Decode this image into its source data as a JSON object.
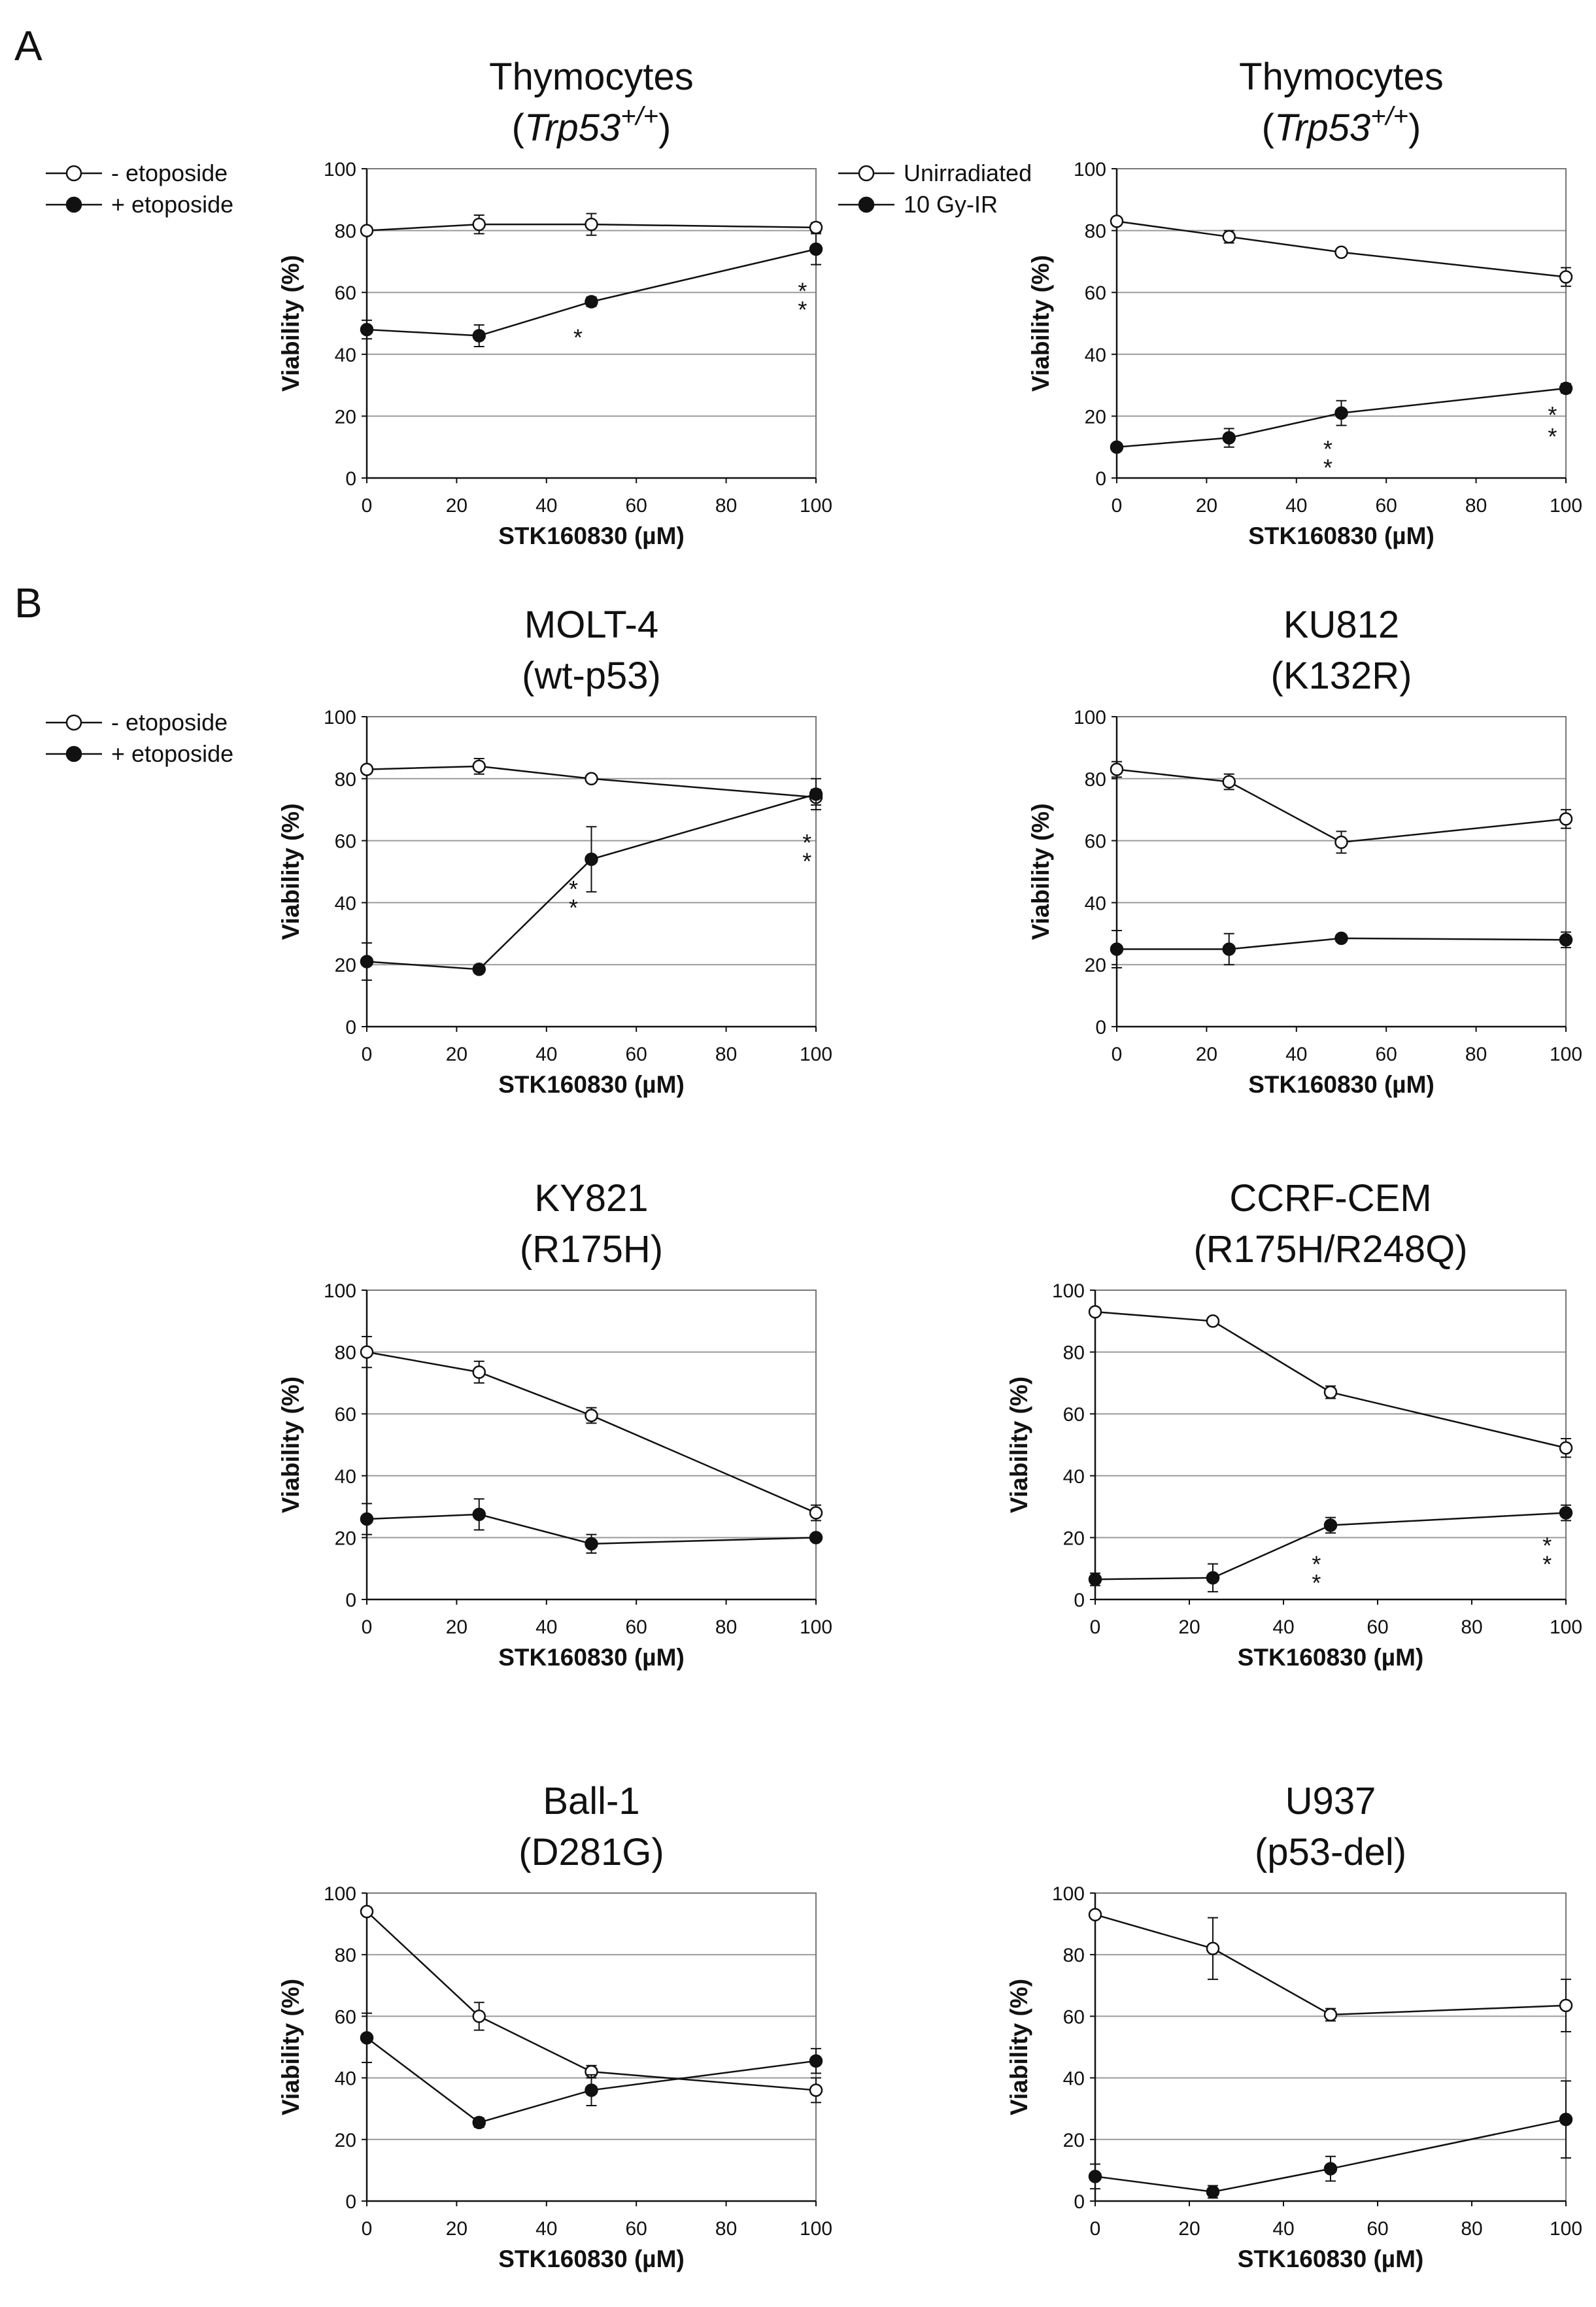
{
  "panel_labels": [
    "A",
    "B"
  ],
  "chart_data": [
    {
      "type": "line",
      "title": "Thymocytes",
      "subtitle_pre": "(",
      "subtitle_gene": "Trp53",
      "subtitle_sup": "+/+",
      "subtitle_post": ")",
      "xlabel": "STK160830 (µM)",
      "ylabel": "Viability (%)",
      "x": [
        0,
        25,
        50,
        100
      ],
      "xticks": [
        "0",
        "20",
        "40",
        "60",
        "80",
        "100"
      ],
      "yticks": [
        "0",
        "20",
        "40",
        "60",
        "80",
        "100"
      ],
      "xlim": [
        0,
        100
      ],
      "ylim": [
        0,
        100
      ],
      "legend": [
        "- etoposide",
        "+ etoposide"
      ],
      "series": [
        {
          "name": "- etoposide",
          "marker": "open",
          "values": [
            80,
            82,
            82,
            81
          ],
          "errors": [
            0.5,
            3,
            3.5,
            1.5
          ]
        },
        {
          "name": "+ etoposide",
          "marker": "filled",
          "values": [
            48,
            46,
            57,
            74
          ],
          "errors": [
            3,
            3.5,
            1.5,
            5
          ]
        }
      ],
      "annotations": [
        {
          "text": "*",
          "x": 47,
          "y": 47
        },
        {
          "text": "*",
          "x": 97,
          "y": 62
        },
        {
          "text": "*",
          "x": 97,
          "y": 56
        }
      ]
    },
    {
      "type": "line",
      "title": "Thymocytes",
      "subtitle_pre": "(",
      "subtitle_gene": "Trp53",
      "subtitle_sup": "+/+",
      "subtitle_post": ")",
      "xlabel": "STK160830 (µM)",
      "ylabel": "Viability (%)",
      "x": [
        0,
        25,
        50,
        100
      ],
      "xticks": [
        "0",
        "20",
        "40",
        "60",
        "80",
        "100"
      ],
      "yticks": [
        "0",
        "20",
        "40",
        "60",
        "80",
        "100"
      ],
      "xlim": [
        0,
        100
      ],
      "ylim": [
        0,
        100
      ],
      "legend": [
        "Unirradiated",
        "10 Gy-IR"
      ],
      "series": [
        {
          "name": "Unirradiated",
          "marker": "open",
          "values": [
            83,
            78,
            73,
            65
          ],
          "errors": [
            1,
            2,
            1,
            3
          ]
        },
        {
          "name": "10 Gy-IR",
          "marker": "filled",
          "values": [
            10,
            13,
            21,
            29
          ],
          "errors": [
            1,
            3,
            4,
            1.5
          ]
        }
      ],
      "annotations": [
        {
          "text": "*",
          "x": 47,
          "y": 11
        },
        {
          "text": "*",
          "x": 47,
          "y": 5
        },
        {
          "text": "*",
          "x": 97,
          "y": 22
        },
        {
          "text": "*",
          "x": 97,
          "y": 15
        }
      ]
    },
    {
      "type": "line",
      "title": "MOLT-4",
      "subtitle": "(wt-p53)",
      "xlabel": "STK160830 (µM)",
      "ylabel": "Viability (%)",
      "x": [
        0,
        25,
        50,
        100
      ],
      "xticks": [
        "0",
        "20",
        "40",
        "60",
        "80",
        "100"
      ],
      "yticks": [
        "0",
        "20",
        "40",
        "60",
        "80",
        "100"
      ],
      "xlim": [
        0,
        100
      ],
      "ylim": [
        0,
        100
      ],
      "legend": [
        "- etoposide",
        "+ etoposide"
      ],
      "series": [
        {
          "name": "- etoposide",
          "marker": "open",
          "values": [
            83,
            84,
            80,
            74
          ],
          "errors": [
            1,
            2.5,
            1,
            2.5
          ]
        },
        {
          "name": "+ etoposide",
          "marker": "filled",
          "values": [
            21,
            18.5,
            54,
            75
          ],
          "errors": [
            6,
            1,
            10.5,
            5
          ]
        }
      ],
      "annotations": [
        {
          "text": "*",
          "x": 46,
          "y": 46
        },
        {
          "text": "*",
          "x": 46,
          "y": 40
        },
        {
          "text": "*",
          "x": 98,
          "y": 61
        },
        {
          "text": "*",
          "x": 98,
          "y": 55
        }
      ]
    },
    {
      "type": "line",
      "title": "KU812",
      "subtitle": "(K132R)",
      "xlabel": "STK160830 (µM)",
      "ylabel": "Viability (%)",
      "x": [
        0,
        25,
        50,
        100
      ],
      "xticks": [
        "0",
        "20",
        "40",
        "60",
        "80",
        "100"
      ],
      "yticks": [
        "0",
        "20",
        "40",
        "60",
        "80",
        "100"
      ],
      "xlim": [
        0,
        100
      ],
      "ylim": [
        0,
        100
      ],
      "series": [
        {
          "name": "- etoposide",
          "marker": "open",
          "values": [
            83,
            79,
            59.5,
            67
          ],
          "errors": [
            2.5,
            2.5,
            3.5,
            3
          ]
        },
        {
          "name": "+ etoposide",
          "marker": "filled",
          "values": [
            25,
            25,
            28.5,
            28
          ],
          "errors": [
            6,
            5,
            0.5,
            2.5
          ]
        }
      ],
      "annotations": []
    },
    {
      "type": "line",
      "title": "KY821",
      "subtitle": "(R175H)",
      "xlabel": "STK160830 (µM)",
      "ylabel": "Viability (%)",
      "x": [
        0,
        25,
        50,
        100
      ],
      "xticks": [
        "0",
        "20",
        "40",
        "60",
        "80",
        "100"
      ],
      "yticks": [
        "0",
        "20",
        "40",
        "60",
        "80",
        "100"
      ],
      "xlim": [
        0,
        100
      ],
      "ylim": [
        0,
        100
      ],
      "series": [
        {
          "name": "- etoposide",
          "marker": "open",
          "values": [
            80,
            73.5,
            59.5,
            28
          ],
          "errors": [
            5,
            3.5,
            2.5,
            2.5
          ]
        },
        {
          "name": "+ etoposide",
          "marker": "filled",
          "values": [
            26,
            27.5,
            18,
            20
          ],
          "errors": [
            5,
            5,
            3,
            1
          ]
        }
      ],
      "annotations": []
    },
    {
      "type": "line",
      "title": "CCRF-CEM",
      "subtitle": "(R175H/R248Q)",
      "xlabel": "STK160830 (µM)",
      "ylabel": "Viability (%)",
      "x": [
        0,
        25,
        50,
        100
      ],
      "xticks": [
        "0",
        "20",
        "40",
        "60",
        "80",
        "100"
      ],
      "yticks": [
        "0",
        "20",
        "40",
        "60",
        "80",
        "100"
      ],
      "xlim": [
        0,
        100
      ],
      "ylim": [
        0,
        100
      ],
      "series": [
        {
          "name": "- etoposide",
          "marker": "open",
          "values": [
            93,
            90,
            67,
            49
          ],
          "errors": [
            0.5,
            0.5,
            2,
            3
          ]
        },
        {
          "name": "+ etoposide",
          "marker": "filled",
          "values": [
            6.5,
            7,
            24,
            28
          ],
          "errors": [
            2,
            4.5,
            2.5,
            2.5
          ]
        }
      ],
      "annotations": [
        {
          "text": "*",
          "x": 47,
          "y": 13
        },
        {
          "text": "*",
          "x": 47,
          "y": 7
        },
        {
          "text": "*",
          "x": 96,
          "y": 19
        },
        {
          "text": "*",
          "x": 96,
          "y": 13
        }
      ]
    },
    {
      "type": "line",
      "title": "Ball-1",
      "subtitle": "(D281G)",
      "xlabel": "STK160830 (µM)",
      "ylabel": "Viability (%)",
      "x": [
        0,
        25,
        50,
        100
      ],
      "xticks": [
        "0",
        "20",
        "40",
        "60",
        "80",
        "100"
      ],
      "yticks": [
        "0",
        "20",
        "40",
        "60",
        "80",
        "100"
      ],
      "xlim": [
        0,
        100
      ],
      "ylim": [
        0,
        100
      ],
      "series": [
        {
          "name": "- etoposide",
          "marker": "open",
          "values": [
            94,
            60,
            42,
            36
          ],
          "errors": [
            1,
            4.5,
            2,
            4
          ]
        },
        {
          "name": "+ etoposide",
          "marker": "filled",
          "values": [
            53,
            25.5,
            36,
            45.5
          ],
          "errors": [
            8,
            1.5,
            5,
            4
          ]
        }
      ],
      "annotations": []
    },
    {
      "type": "line",
      "title": "U937",
      "subtitle": "(p53-del)",
      "xlabel": "STK160830 (µM)",
      "ylabel": "Viability (%)",
      "x": [
        0,
        25,
        50,
        100
      ],
      "xticks": [
        "0",
        "20",
        "40",
        "60",
        "80",
        "100"
      ],
      "yticks": [
        "0",
        "20",
        "40",
        "60",
        "80",
        "100"
      ],
      "xlim": [
        0,
        100
      ],
      "ylim": [
        0,
        100
      ],
      "series": [
        {
          "name": "- etoposide",
          "marker": "open",
          "values": [
            93,
            82,
            60.5,
            63.5
          ],
          "errors": [
            1,
            10,
            2,
            8.5
          ]
        },
        {
          "name": "+ etoposide",
          "marker": "filled",
          "values": [
            8,
            3,
            10.5,
            26.5
          ],
          "errors": [
            4,
            2,
            4,
            12.5
          ]
        }
      ],
      "annotations": []
    }
  ]
}
